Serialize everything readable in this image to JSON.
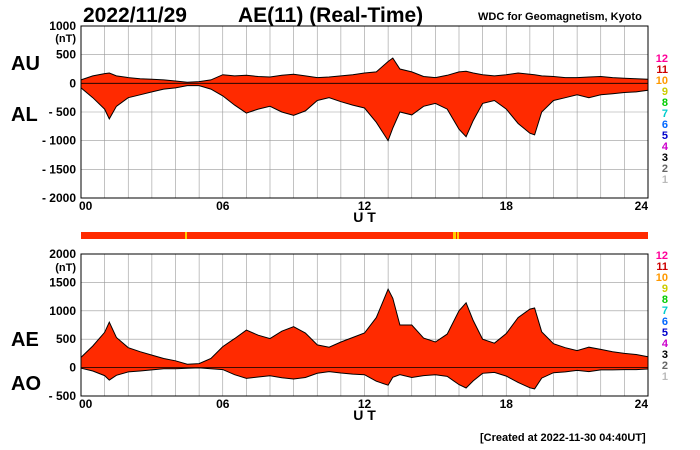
{
  "header": {
    "date": "2022/11/29",
    "title": "AE(11) (Real-Time)",
    "source": "WDC for Geomagnetism, Kyoto"
  },
  "footer": {
    "created": "[Created at 2022-11-30 04:40UT]"
  },
  "colors": {
    "fill": "#ff2a00",
    "outline": "#000000",
    "grid": "#9a9a9a",
    "spike": "#ffcc00"
  },
  "legend": {
    "levels": [
      "12",
      "11",
      "10",
      "9",
      "8",
      "7",
      "6",
      "5",
      "4",
      "3",
      "2",
      "1"
    ],
    "colors": [
      "#ff0099",
      "#cc0000",
      "#ff9900",
      "#cccc00",
      "#00cc00",
      "#00cccc",
      "#0066ff",
      "#0000cc",
      "#cc00cc",
      "#000000",
      "#666666",
      "#bbbbbb"
    ]
  },
  "chart_data": [
    {
      "type": "area",
      "panel": "AU/AL",
      "upper_label": "AU",
      "lower_label": "AL",
      "xlabel": "U T",
      "ylabel_unit": "(nT)",
      "xlim": [
        0,
        24
      ],
      "ylim": [
        -2000,
        1000
      ],
      "xticks": [
        0,
        6,
        12,
        18,
        24
      ],
      "xtick_labels": [
        "00",
        "06",
        "12",
        "18",
        "24"
      ],
      "yticks": [
        1000,
        500,
        0,
        -500,
        -1000,
        -1500,
        -2000
      ],
      "ytick_labels": [
        "1000",
        "500",
        "0",
        "- 500",
        "- 1000",
        "- 1500",
        "- 2000"
      ],
      "grid": true,
      "x": [
        0,
        0.5,
        1,
        1.2,
        1.5,
        2,
        2.5,
        3,
        3.5,
        4,
        4.5,
        5,
        5.5,
        6,
        6.5,
        7,
        7.5,
        8,
        8.5,
        9,
        9.5,
        10,
        10.5,
        11,
        11.5,
        12,
        12.5,
        13,
        13.2,
        13.5,
        14,
        14.5,
        15,
        15.5,
        16,
        16.3,
        16.6,
        17,
        17.5,
        18,
        18.5,
        19,
        19.2,
        19.5,
        20,
        20.5,
        21,
        21.5,
        22,
        22.5,
        23,
        23.5,
        24
      ],
      "series": [
        {
          "name": "AU",
          "values": [
            60,
            130,
            170,
            180,
            130,
            100,
            80,
            70,
            60,
            40,
            20,
            30,
            60,
            150,
            130,
            140,
            120,
            110,
            140,
            160,
            130,
            100,
            110,
            130,
            150,
            180,
            200,
            380,
            440,
            250,
            200,
            120,
            100,
            140,
            200,
            210,
            180,
            150,
            130,
            150,
            180,
            160,
            150,
            130,
            120,
            100,
            100,
            110,
            120,
            100,
            90,
            80,
            70
          ]
        },
        {
          "name": "AL",
          "values": [
            -80,
            -250,
            -450,
            -620,
            -400,
            -250,
            -200,
            -150,
            -100,
            -80,
            -40,
            -40,
            -100,
            -220,
            -380,
            -520,
            -450,
            -400,
            -500,
            -560,
            -480,
            -300,
            -250,
            -320,
            -380,
            -430,
            -680,
            -1000,
            -780,
            -500,
            -550,
            -400,
            -350,
            -450,
            -800,
            -930,
            -650,
            -350,
            -300,
            -450,
            -700,
            -870,
            -900,
            -500,
            -300,
            -250,
            -200,
            -250,
            -200,
            -180,
            -160,
            -150,
            -120
          ]
        }
      ]
    },
    {
      "type": "area",
      "panel": "AE/AO",
      "upper_label": "AE",
      "lower_label": "AO",
      "xlabel": "U T",
      "ylabel_unit": "(nT)",
      "xlim": [
        0,
        24
      ],
      "ylim": [
        -500,
        2000
      ],
      "xticks": [
        0,
        6,
        12,
        18,
        24
      ],
      "xtick_labels": [
        "00",
        "06",
        "12",
        "18",
        "24"
      ],
      "yticks": [
        2000,
        1500,
        1000,
        500,
        0,
        -500
      ],
      "ytick_labels": [
        "2000",
        "1500",
        "1000",
        "500",
        "0",
        "- 500"
      ],
      "grid": true,
      "x": [
        0,
        0.5,
        1,
        1.2,
        1.5,
        2,
        2.5,
        3,
        3.5,
        4,
        4.5,
        5,
        5.5,
        6,
        6.5,
        7,
        7.5,
        8,
        8.5,
        9,
        9.5,
        10,
        10.5,
        11,
        11.5,
        12,
        12.5,
        13,
        13.2,
        13.5,
        14,
        14.5,
        15,
        15.5,
        16,
        16.3,
        16.6,
        17,
        17.5,
        18,
        18.5,
        19,
        19.2,
        19.5,
        20,
        20.5,
        21,
        21.5,
        22,
        22.5,
        23,
        23.5,
        24
      ],
      "series": [
        {
          "name": "AE",
          "values": [
            180,
            380,
            620,
            800,
            530,
            350,
            280,
            220,
            160,
            120,
            60,
            70,
            160,
            370,
            510,
            660,
            570,
            510,
            640,
            720,
            610,
            400,
            360,
            450,
            530,
            610,
            880,
            1380,
            1220,
            750,
            750,
            520,
            450,
            590,
            1000,
            1140,
            830,
            500,
            430,
            600,
            880,
            1030,
            1050,
            630,
            420,
            350,
            300,
            360,
            320,
            280,
            250,
            230,
            190
          ]
        },
        {
          "name": "AO",
          "values": [
            -10,
            -60,
            -140,
            -220,
            -135,
            -75,
            -60,
            -40,
            -20,
            -20,
            -10,
            -5,
            -20,
            -35,
            -125,
            -190,
            -165,
            -145,
            -180,
            -200,
            -175,
            -100,
            -70,
            -95,
            -115,
            -125,
            -240,
            -310,
            -170,
            -125,
            -175,
            -140,
            -125,
            -155,
            -300,
            -360,
            -235,
            -100,
            -85,
            -150,
            -260,
            -355,
            -375,
            -185,
            -90,
            -75,
            -50,
            -70,
            -40,
            -40,
            -35,
            -35,
            -25
          ]
        }
      ]
    }
  ]
}
